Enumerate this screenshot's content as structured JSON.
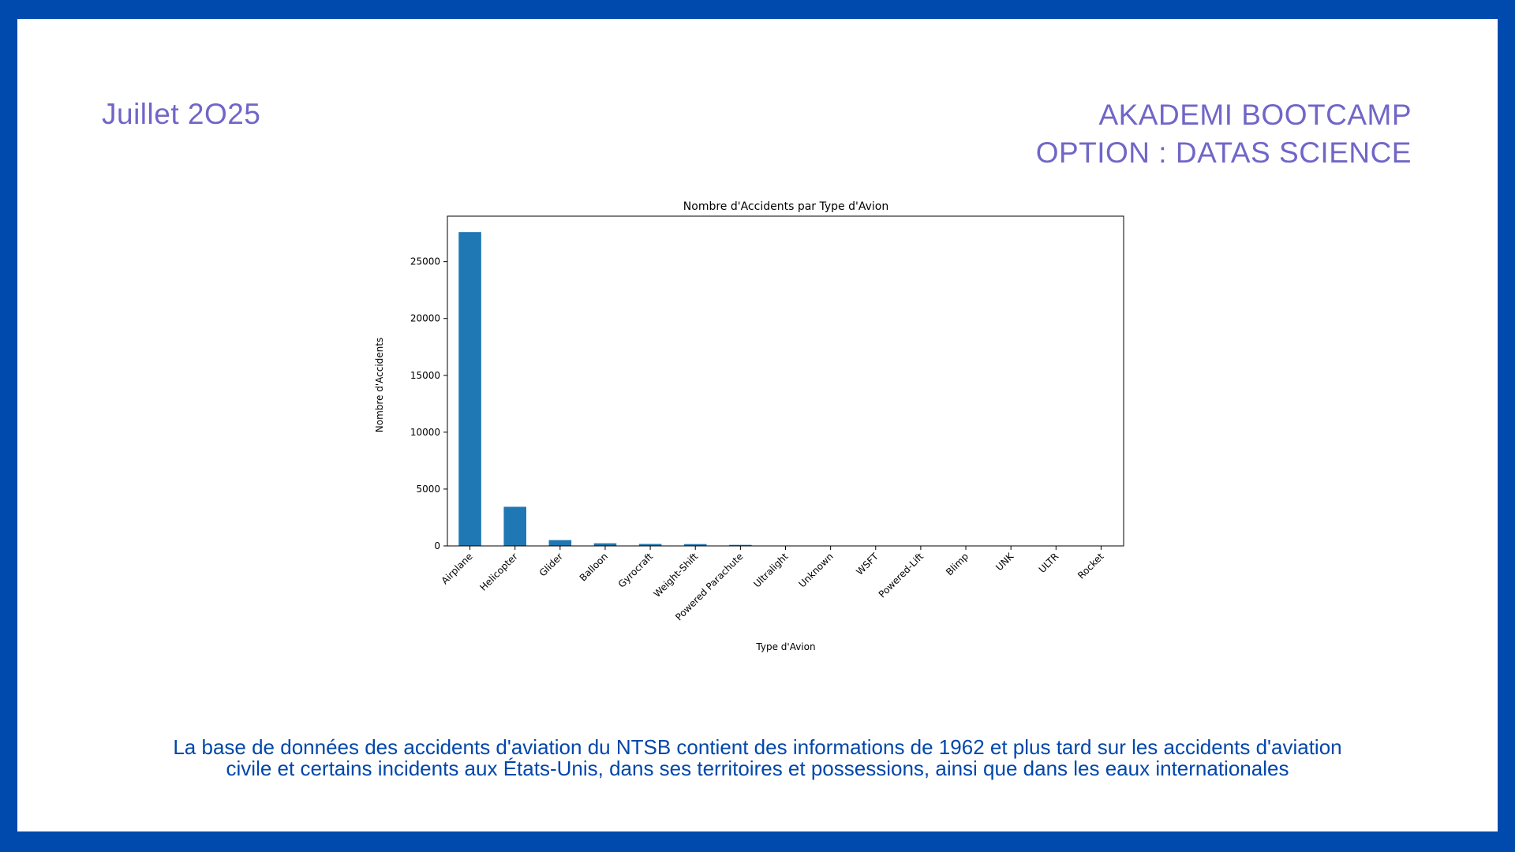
{
  "header": {
    "date": "Juillet 2O25",
    "brand_line1": "AKADEMI BOOTCAMP",
    "brand_line2": "OPTION : DATAS SCIENCE"
  },
  "caption": {
    "line1": "La base de données des accidents d'aviation du NTSB contient des informations de 1962 et plus tard sur les accidents d'aviation",
    "line2": "civile et certains incidents aux États-Unis, dans ses territoires et possessions, ainsi que dans les eaux internationales"
  },
  "colors": {
    "frame": "#004aad",
    "accent_text": "#7066c8",
    "caption_text": "#0047ab",
    "bar": "#1f77b4"
  },
  "chart_data": {
    "type": "bar",
    "title": "Nombre d'Accidents par Type d'Avion",
    "xlabel": "Type d'Avion",
    "ylabel": "Nombre d'Accidents",
    "categories": [
      "Airplane",
      "Helicopter",
      "Glider",
      "Balloon",
      "Gyrocraft",
      "Weight-Shift",
      "Powered Parachute",
      "Ultralight",
      "Unknown",
      "WSFT",
      "Powered-Lift",
      "Blimp",
      "UNK",
      "ULTR",
      "Rocket"
    ],
    "values": [
      27600,
      3440,
      510,
      230,
      170,
      160,
      90,
      30,
      15,
      9,
      5,
      4,
      2,
      1,
      1
    ],
    "yticks": [
      0,
      5000,
      10000,
      15000,
      20000,
      25000
    ],
    "ylim": [
      0,
      29000
    ],
    "grid": false,
    "legend": "none"
  }
}
